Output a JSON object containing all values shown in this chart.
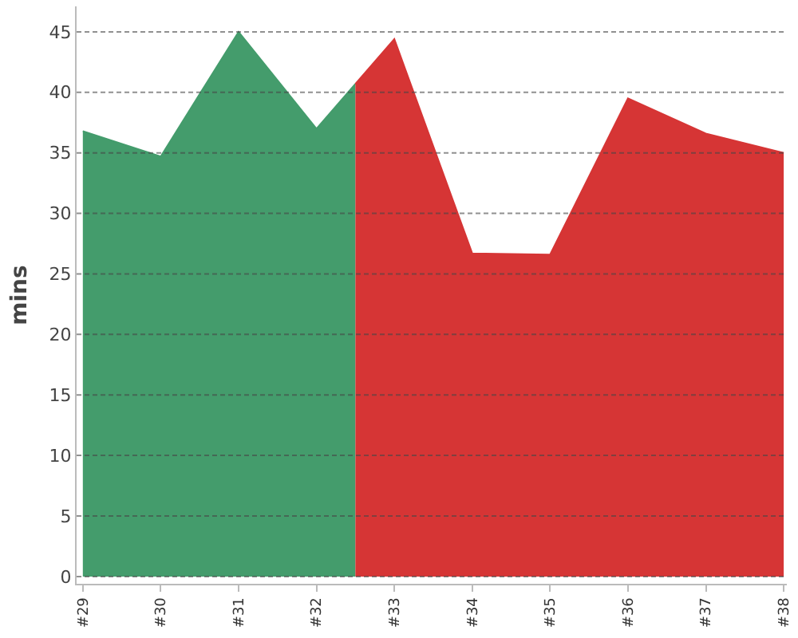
{
  "chart_data": {
    "type": "area",
    "ylabel": "mins",
    "xlim": [
      28.92,
      38.04
    ],
    "xticks": [
      {
        "value": 29,
        "label": "#29"
      },
      {
        "value": 30,
        "label": "#30"
      },
      {
        "value": 31,
        "label": "#31"
      },
      {
        "value": 32,
        "label": "#32"
      },
      {
        "value": 33,
        "label": "#33"
      },
      {
        "value": 34,
        "label": "#34"
      },
      {
        "value": 35,
        "label": "#35"
      },
      {
        "value": 36,
        "label": "#36"
      },
      {
        "value": 37,
        "label": "#37"
      },
      {
        "value": 38,
        "label": "#38"
      }
    ],
    "ylim": [
      -0.6,
      47.1
    ],
    "yticks": [
      0,
      5,
      10,
      15,
      20,
      25,
      30,
      35,
      40,
      45
    ],
    "grid": "y",
    "series": [
      {
        "color": "#449c6c",
        "x": [
          29,
          30,
          31,
          32,
          32.5
        ],
        "values": [
          36.8,
          34.7,
          45,
          37,
          40.7
        ]
      },
      {
        "color": "#d63535",
        "x": [
          32.5,
          33,
          34,
          35,
          36,
          37,
          38
        ],
        "values": [
          40.7,
          44.4,
          26.7,
          26.6,
          39.5,
          36.6,
          35
        ]
      }
    ]
  }
}
